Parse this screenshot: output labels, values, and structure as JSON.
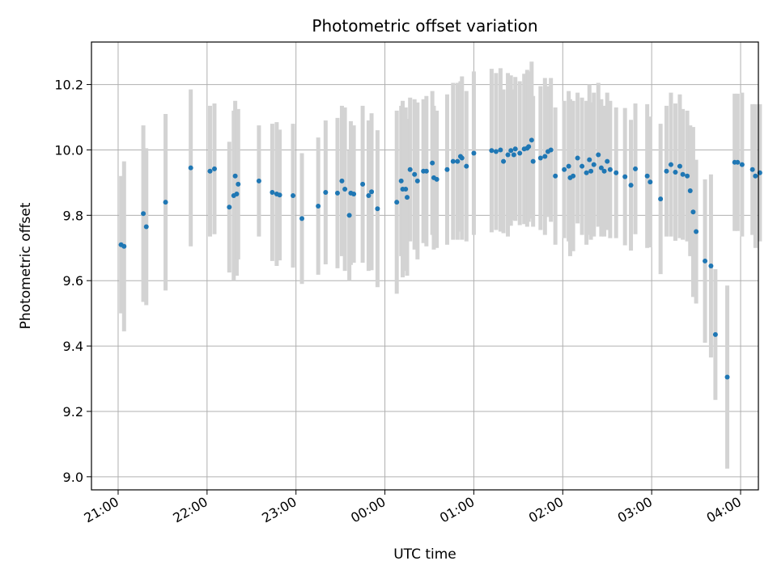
{
  "chart_data": {
    "type": "scatter",
    "title": "Photometric offset variation",
    "xlabel": "UTC time",
    "ylabel": "Photometric offset",
    "grid": true,
    "x_axis_kind": "time",
    "x_ticks": [
      "21:00",
      "22:00",
      "23:00",
      "00:00",
      "01:00",
      "02:00",
      "03:00",
      "04:00"
    ],
    "y_ticks": [
      "9.0",
      "9.2",
      "9.4",
      "9.6",
      "9.8",
      "10.0",
      "10.2"
    ],
    "xlim": [
      "20:42",
      "04:12"
    ],
    "ylim": [
      8.96,
      10.33
    ],
    "colors": {
      "points": "#1f77b4",
      "errorbars": "#d3d3d3",
      "grid": "#b0b0b0"
    },
    "series": [
      {
        "x": [
          "21:02",
          "21:04",
          "21:17",
          "21:19",
          "21:32",
          "21:49",
          "22:02",
          "22:05",
          "22:15",
          "22:18",
          "22:19",
          "22:20",
          "22:21",
          "22:35",
          "22:44",
          "22:47",
          "22:49",
          "22:58",
          "23:04",
          "23:15",
          "23:20",
          "23:28",
          "23:31",
          "23:33",
          "23:36",
          "23:37",
          "23:39",
          "23:45",
          "23:49",
          "23:51",
          "23:55",
          "24:08",
          "24:11",
          "24:12",
          "24:14",
          "24:15",
          "24:17",
          "24:20",
          "24:22",
          "24:26",
          "24:28",
          "24:32",
          "24:33",
          "24:35",
          "24:42",
          "24:46",
          "24:49",
          "24:51",
          "24:52",
          "24:55",
          "25:00",
          "25:12",
          "25:15",
          "25:18",
          "25:20",
          "25:23",
          "25:25",
          "25:27",
          "25:28",
          "25:31",
          "25:34",
          "25:36",
          "25:37",
          "25:39",
          "25:40",
          "25:45",
          "25:48",
          "25:50",
          "25:52",
          "25:55",
          "26:01",
          "26:04",
          "26:05",
          "26:07",
          "26:10",
          "26:13",
          "26:16",
          "26:18",
          "26:19",
          "26:21",
          "26:24",
          "26:26",
          "26:28",
          "26:30",
          "26:32",
          "26:36",
          "26:42",
          "26:46",
          "26:49",
          "26:57",
          "26:59",
          "27:06",
          "27:10",
          "27:13",
          "27:16",
          "27:19",
          "27:21",
          "27:24",
          "27:26",
          "27:28",
          "27:30",
          "27:36",
          "27:40",
          "27:43",
          "27:51",
          "27:56",
          "27:58",
          "28:01",
          "28:08",
          "28:10",
          "28:13"
        ],
        "y": [
          9.71,
          9.705,
          9.805,
          9.765,
          9.84,
          9.945,
          9.935,
          9.942,
          9.825,
          9.86,
          9.92,
          9.865,
          9.895,
          9.905,
          9.87,
          9.865,
          9.862,
          9.86,
          9.79,
          9.828,
          9.87,
          9.868,
          9.905,
          9.88,
          9.8,
          9.868,
          9.865,
          9.895,
          9.86,
          9.872,
          9.82,
          9.84,
          9.905,
          9.88,
          9.88,
          9.855,
          9.94,
          9.925,
          9.905,
          9.935,
          9.935,
          9.96,
          9.915,
          9.91,
          9.94,
          9.965,
          9.965,
          9.98,
          9.975,
          9.95,
          9.99,
          9.998,
          9.995,
          10.0,
          9.965,
          9.985,
          9.998,
          9.985,
          10.003,
          9.99,
          10.003,
          10.005,
          10.01,
          10.03,
          9.965,
          9.975,
          9.98,
          9.995,
          10.0,
          9.92,
          9.94,
          9.95,
          9.915,
          9.92,
          9.975,
          9.95,
          9.93,
          9.97,
          9.935,
          9.955,
          9.985,
          9.945,
          9.935,
          9.965,
          9.94,
          9.93,
          9.918,
          9.892,
          9.942,
          9.92,
          9.902,
          9.85,
          9.935,
          9.955,
          9.932,
          9.95,
          9.925,
          9.92,
          9.875,
          9.81,
          9.75,
          9.66,
          9.645,
          9.435,
          9.305,
          9.962,
          9.962,
          9.955,
          9.94,
          9.92,
          9.93
        ],
        "yerr": [
          0.21,
          0.26,
          0.27,
          0.24,
          0.27,
          0.24,
          0.2,
          0.2,
          0.2,
          0.26,
          0.23,
          0.25,
          0.23,
          0.17,
          0.21,
          0.22,
          0.2,
          0.22,
          0.2,
          0.21,
          0.22,
          0.23,
          0.23,
          0.25,
          0.2,
          0.22,
          0.21,
          0.24,
          0.23,
          0.24,
          0.24,
          0.28,
          0.23,
          0.27,
          0.25,
          0.24,
          0.22,
          0.23,
          0.24,
          0.22,
          0.23,
          0.22,
          0.22,
          0.21,
          0.23,
          0.24,
          0.24,
          0.23,
          0.25,
          0.23,
          0.25,
          0.25,
          0.24,
          0.25,
          0.22,
          0.25,
          0.23,
          0.2,
          0.22,
          0.22,
          0.23,
          0.24,
          0.23,
          0.24,
          0.2,
          0.22,
          0.24,
          0.2,
          0.22,
          0.21,
          0.21,
          0.23,
          0.24,
          0.23,
          0.2,
          0.21,
          0.22,
          0.23,
          0.21,
          0.22,
          0.22,
          0.21,
          0.2,
          0.21,
          0.21,
          0.2,
          0.21,
          0.2,
          0.2,
          0.22,
          0.2,
          0.23,
          0.2,
          0.22,
          0.21,
          0.22,
          0.2,
          0.2,
          0.2,
          0.26,
          0.22,
          0.25,
          0.28,
          0.2,
          0.28,
          0.21,
          0.21,
          0.22,
          0.2,
          0.22,
          0.21
        ]
      }
    ]
  }
}
